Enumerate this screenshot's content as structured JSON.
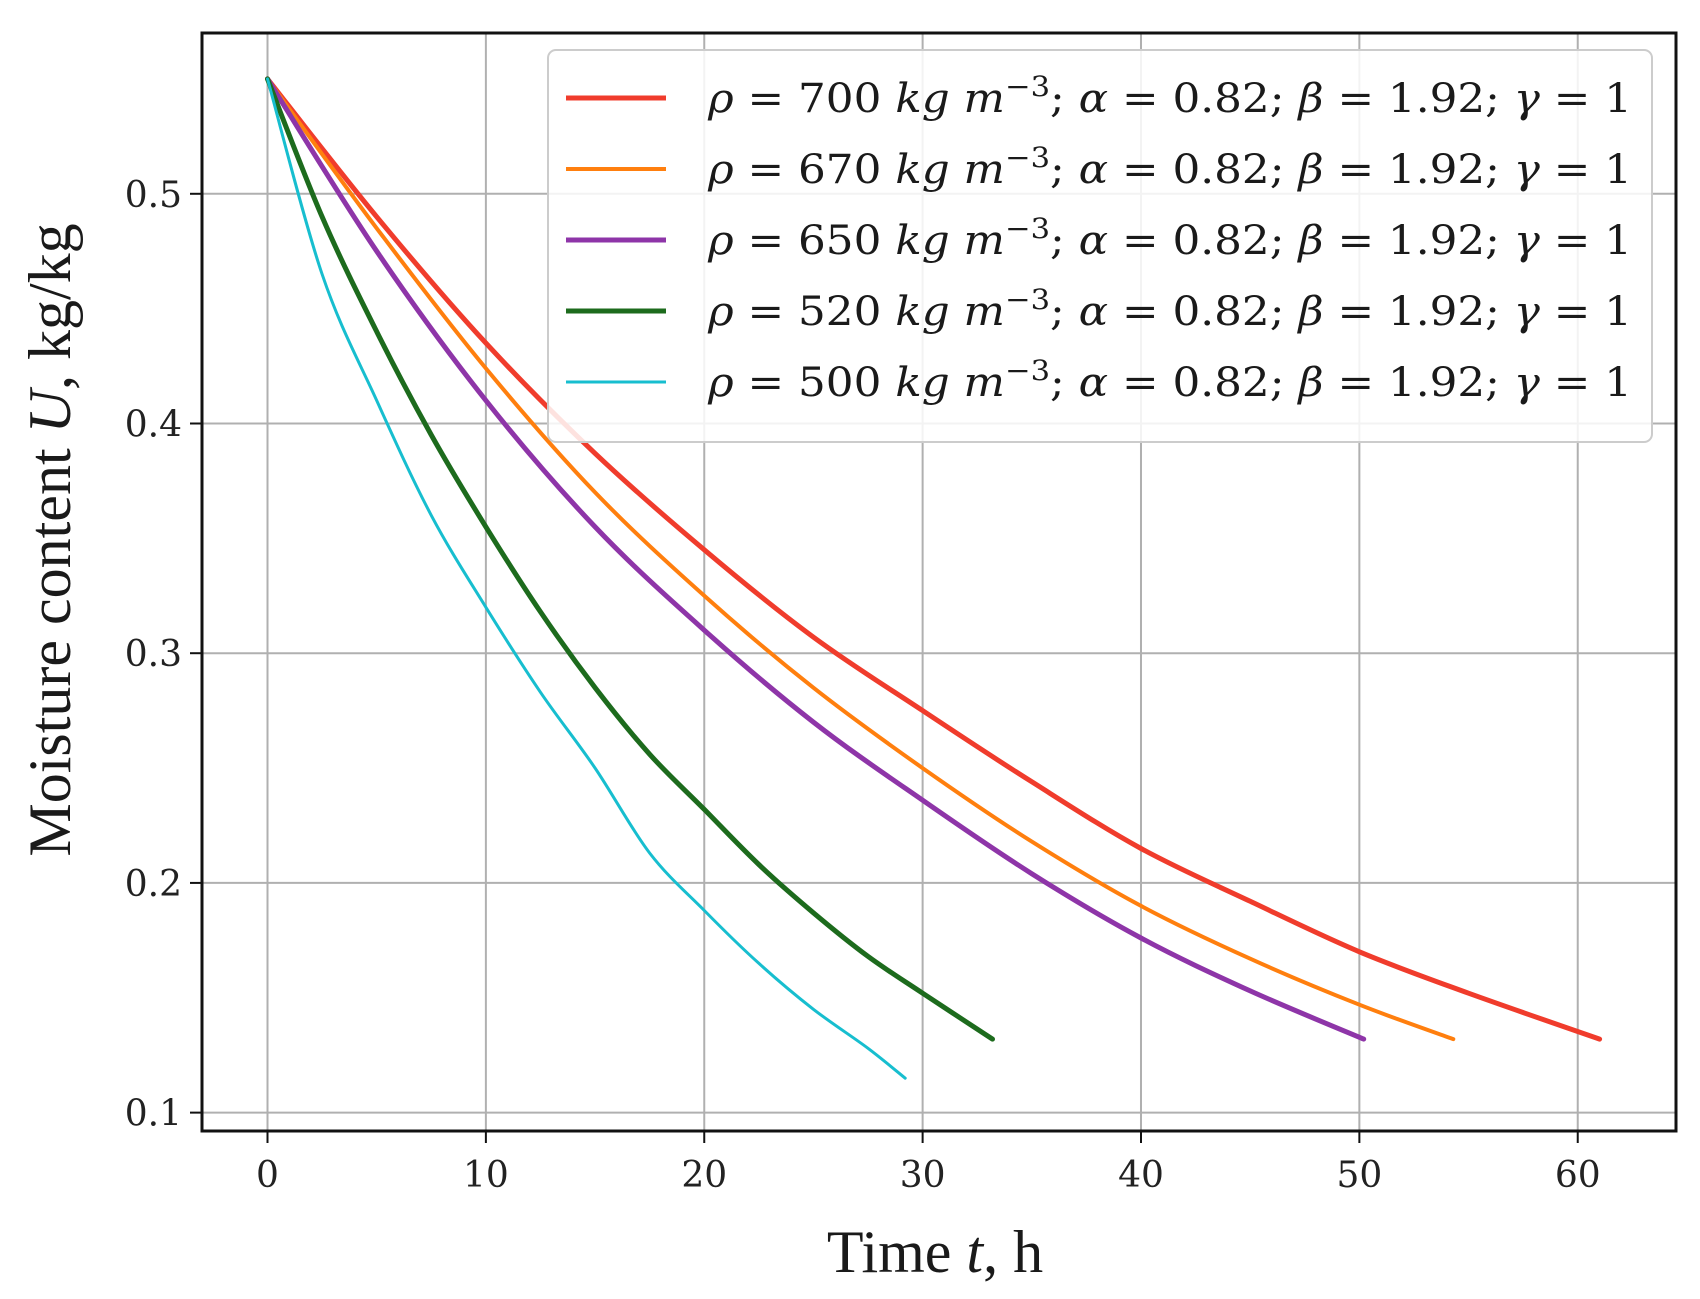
{
  "chart_data": {
    "type": "line",
    "title": "",
    "xlabel": {
      "prefix": "Time ",
      "var": "t",
      "suffix": ", h"
    },
    "ylabel": {
      "prefix": "Moisture content ",
      "var": "U",
      "suffix": ", kg/kg"
    },
    "xlim": [
      -3,
      64.5
    ],
    "ylim": [
      0.092,
      0.57
    ],
    "xticks": [
      0,
      10,
      20,
      30,
      40,
      50,
      60
    ],
    "yticks": [
      0.1,
      0.2,
      0.3,
      0.4,
      0.5
    ],
    "ytick_labels": [
      "0.1",
      "0.2",
      "0.3",
      "0.4",
      "0.5"
    ],
    "grid": true,
    "legend_position": "top-right",
    "series": [
      {
        "rho": "700",
        "alpha": "0.82",
        "beta": "1.92",
        "gamma": "1",
        "color": "#f03c2c",
        "width": 5,
        "x": [
          0,
          5,
          10,
          15,
          20,
          25,
          30,
          35,
          40,
          45,
          50,
          55,
          61
        ],
        "y": [
          0.55,
          0.49,
          0.435,
          0.387,
          0.345,
          0.307,
          0.275,
          0.244,
          0.215,
          0.192,
          0.17,
          0.152,
          0.132
        ]
      },
      {
        "rho": "670",
        "alpha": "0.82",
        "beta": "1.92",
        "gamma": "1",
        "color": "#ff7f0e",
        "width": 4,
        "x": [
          0,
          5,
          10,
          15,
          20,
          25,
          30,
          35,
          40,
          45,
          50,
          54.3
        ],
        "y": [
          0.55,
          0.485,
          0.424,
          0.37,
          0.325,
          0.285,
          0.25,
          0.218,
          0.19,
          0.167,
          0.147,
          0.132
        ]
      },
      {
        "rho": "650",
        "alpha": "0.82",
        "beta": "1.92",
        "gamma": "1",
        "color": "#8e35a8",
        "width": 5,
        "x": [
          0,
          5,
          10,
          15,
          20,
          25,
          30,
          35,
          40,
          45,
          50.2
        ],
        "y": [
          0.55,
          0.475,
          0.41,
          0.355,
          0.31,
          0.27,
          0.236,
          0.204,
          0.176,
          0.153,
          0.132
        ]
      },
      {
        "rho": "520",
        "alpha": "0.82",
        "beta": "1.92",
        "gamma": "1",
        "color": "#1d6b1d",
        "width": 5,
        "x": [
          0,
          2.5,
          5,
          7.5,
          10,
          12.5,
          15,
          17.5,
          20,
          22.5,
          25,
          27.5,
          30,
          33.2
        ],
        "y": [
          0.55,
          0.49,
          0.44,
          0.395,
          0.355,
          0.318,
          0.285,
          0.256,
          0.232,
          0.208,
          0.187,
          0.168,
          0.152,
          0.132
        ]
      },
      {
        "rho": "500",
        "alpha": "0.82",
        "beta": "1.92",
        "gamma": "1",
        "color": "#17becf",
        "width": 3,
        "x": [
          0,
          2.5,
          5,
          7.5,
          10,
          12.5,
          15,
          17.5,
          20,
          22.5,
          25,
          27.5,
          29.2
        ],
        "y": [
          0.55,
          0.465,
          0.41,
          0.36,
          0.32,
          0.283,
          0.25,
          0.213,
          0.188,
          0.165,
          0.145,
          0.128,
          0.115
        ]
      }
    ]
  }
}
